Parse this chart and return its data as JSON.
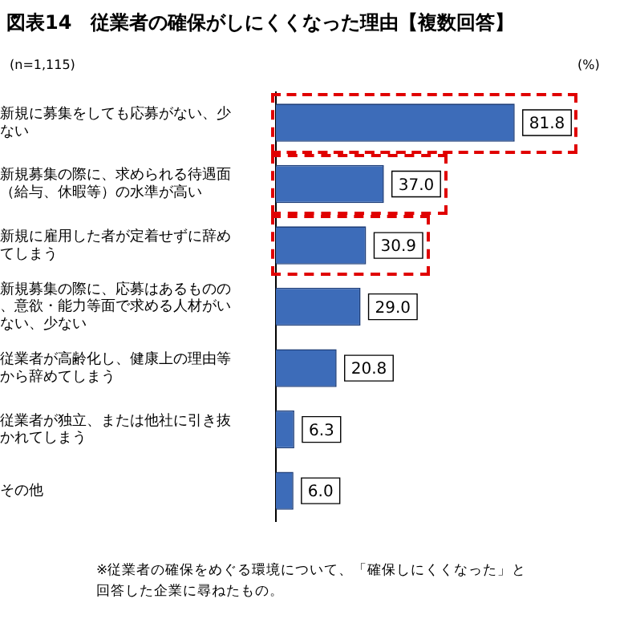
{
  "chart_data": {
    "type": "bar",
    "orientation": "horizontal",
    "title": "図表14　従業者の確保がしにくくなった理由【複数回答】",
    "categories": [
      "新規に募集をしても応募がない、少ない",
      "新規募集の際に、求められる待遇面（給与、休暇等）の水準が高い",
      "新規に雇用した者が定着せずに辞めてしまう",
      "新規募集の際に、応募はあるものの、意欲・能力等面で求める人材がいない、少ない",
      "従業者が高齢化し、健康上の理由等から辞めてしまう",
      "従業者が独立、または他社に引き抜かれてしまう",
      "その他"
    ],
    "values": [
      81.8,
      37.0,
      30.9,
      29.0,
      20.8,
      6.3,
      6.0
    ],
    "value_labels": [
      "81.8",
      "37.0",
      "30.9",
      "29.0",
      "20.8",
      "6.3",
      "6.0"
    ],
    "color": "#3d6cb9",
    "tick_labels": "y",
    "legend": false,
    "annotations": [
      "(n=1,115)",
      "(%)",
      "※従業者の確保をめぐる環境について、「確保しにくくなった」と回答した企業に尋ねたもの。"
    ]
  }
}
